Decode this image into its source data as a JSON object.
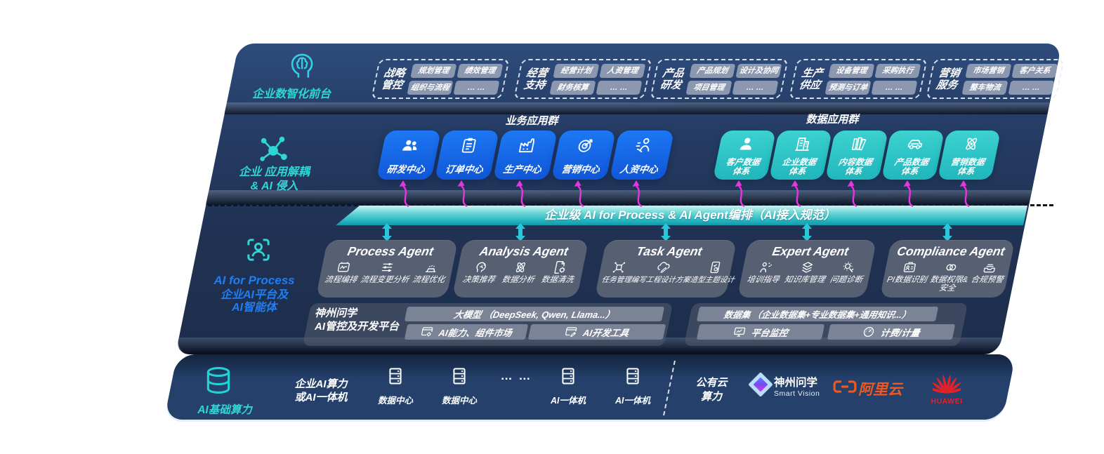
{
  "front": {
    "label": "企业数智化前台",
    "groups": [
      {
        "title": [
          "战略",
          "管控"
        ],
        "chips": [
          "规划管理",
          "绩效管理",
          "组织与流程",
          "… …"
        ]
      },
      {
        "title": [
          "经营",
          "支持"
        ],
        "chips": [
          "经营计划",
          "人资管理",
          "财务核算",
          "… …"
        ]
      },
      {
        "title": [
          "产品",
          "研发"
        ],
        "chips": [
          "产品规划",
          "设计及协同",
          "项目管理",
          "… …"
        ]
      },
      {
        "title": [
          "生产",
          "供应"
        ],
        "chips": [
          "设备管理",
          "采购执行",
          "预测与订单",
          "… …"
        ]
      },
      {
        "title": [
          "营销",
          "服务"
        ],
        "chips": [
          "市场营销",
          "客户关系",
          "整车物流",
          "… …"
        ]
      }
    ]
  },
  "decouple": {
    "label": [
      "企业 应用解耦",
      "& AI 侵入"
    ]
  },
  "business_apps": {
    "header": "业务应用群",
    "items": [
      {
        "label": "研发中心",
        "icon": "team"
      },
      {
        "label": "订单中心",
        "icon": "clipboard"
      },
      {
        "label": "生产中心",
        "icon": "factory"
      },
      {
        "label": "营销中心",
        "icon": "target"
      },
      {
        "label": "人资中心",
        "icon": "person-wave"
      }
    ]
  },
  "data_apps": {
    "header": "数据应用群",
    "items": [
      {
        "label": [
          "客户数据",
          "体系"
        ],
        "icon": "person"
      },
      {
        "label": [
          "企业数据",
          "体系"
        ],
        "icon": "building"
      },
      {
        "label": [
          "内容数据",
          "体系"
        ],
        "icon": "books"
      },
      {
        "label": [
          "产品数据",
          "体系"
        ],
        "icon": "car"
      },
      {
        "label": [
          "营销数据",
          "体系"
        ],
        "icon": "atom"
      }
    ]
  },
  "band": {
    "label": "企业级 AI for Process & AI Agent编排（AI接入规范）"
  },
  "platform_section": {
    "label_en": "AI for Process",
    "label": [
      "企业AI平台及",
      "AI智能体"
    ]
  },
  "agents": [
    {
      "title": "Process Agent",
      "features": [
        {
          "label": "流程编排",
          "icon": "flow"
        },
        {
          "label": "流程变更分析",
          "icon": "sliders"
        },
        {
          "label": "流程优化",
          "icon": "optimize"
        }
      ]
    },
    {
      "title": "Analysis Agent",
      "features": [
        {
          "label": "决策推荐",
          "icon": "decide"
        },
        {
          "label": "数据分析",
          "icon": "atom"
        },
        {
          "label": "数据清洗",
          "icon": "clean"
        }
      ]
    },
    {
      "title": "Task Agent",
      "features": [
        {
          "label": "任务管理",
          "icon": "task"
        },
        {
          "label": "编写工程设计方案",
          "icon": "cloudpen"
        },
        {
          "label": "造型主题设计",
          "icon": "design"
        }
      ]
    },
    {
      "title": "Expert Agent",
      "features": [
        {
          "label": "培训指导",
          "icon": "teach"
        },
        {
          "label": "知识库管理",
          "icon": "layers"
        },
        {
          "label": "问题诊断",
          "icon": "diagnose"
        }
      ]
    },
    {
      "title": "Compliance Agent",
      "features": [
        {
          "label": "PI数据识别",
          "icon": "idcard"
        },
        {
          "label": "数据权限&安全",
          "icon": "rings"
        },
        {
          "label": "合规预警",
          "icon": "inbox"
        }
      ]
    }
  ],
  "platform": {
    "name": [
      "神州问学",
      "AI管控及开发平台"
    ],
    "llm": "大模型 （DeepSeek, Qwen, Llama...）",
    "capability": "AI能力、组件市场",
    "devtools": "AI开发工具",
    "dataset": "数据集 （企业数据集+专业数据集+通用知识...）",
    "monitor": "平台监控",
    "billing": "计费/计量"
  },
  "infra": {
    "label": "AI基础算力",
    "compute": [
      "企业AI算力",
      "或AI一体机"
    ],
    "nodes": [
      {
        "label": "数据中心"
      },
      {
        "label": "数据中心"
      },
      {
        "label": "AI一体机"
      },
      {
        "label": "AI一体机"
      }
    ],
    "ellipsis": "… …",
    "cloud": [
      "公有云",
      "算力"
    ],
    "vendors": {
      "smartvision": {
        "name": "神州问学",
        "sub": "Smart Vision"
      },
      "alicloud": "阿里云",
      "huawei": "HUAWEI"
    }
  },
  "colors": {
    "panel_navy": "#223a61",
    "accent_cyan": "#2fd6d6",
    "accent_blue": "#1e7ef2",
    "app_blue": "#1766e8",
    "data_teal": "#2ec6c8",
    "band_teal": "#23b3c0",
    "magenta": "#e438dd",
    "card_gray": "#5a6274",
    "alicloud_orange": "#f0581d",
    "huawei_red": "#e32128"
  }
}
